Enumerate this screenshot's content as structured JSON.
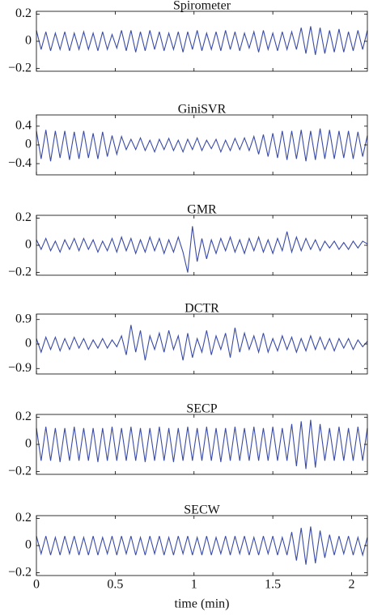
{
  "chart_data": [
    {
      "type": "line",
      "title": "Spirometer",
      "color": "#3a4ba6",
      "x": [
        0,
        0.03,
        0.06,
        0.09,
        0.12,
        0.15,
        0.18,
        0.21,
        0.24,
        0.27,
        0.3,
        0.33,
        0.36,
        0.39,
        0.42,
        0.45,
        0.48,
        0.51,
        0.54,
        0.57,
        0.6,
        0.63,
        0.66,
        0.69,
        0.72,
        0.75,
        0.78,
        0.81,
        0.84,
        0.87,
        0.9,
        0.93,
        0.96,
        0.99,
        1.02,
        1.05,
        1.08,
        1.11,
        1.14,
        1.17,
        1.2,
        1.23,
        1.26,
        1.29,
        1.32,
        1.35,
        1.38,
        1.41,
        1.44,
        1.47,
        1.5,
        1.53,
        1.56,
        1.59,
        1.62,
        1.65,
        1.68,
        1.71,
        1.74,
        1.77,
        1.8,
        1.83,
        1.86,
        1.89,
        1.92,
        1.95,
        1.98,
        2.01,
        2.04,
        2.07,
        2.1
      ],
      "values": [
        0.08,
        -0.06,
        0.07,
        -0.07,
        0.06,
        -0.06,
        0.07,
        -0.07,
        0.06,
        -0.06,
        0.07,
        -0.06,
        0.06,
        -0.07,
        0.07,
        -0.06,
        0.05,
        -0.05,
        0.08,
        -0.07,
        0.08,
        -0.08,
        0.07,
        -0.07,
        0.08,
        -0.06,
        0.07,
        -0.07,
        0.06,
        -0.06,
        0.07,
        -0.08,
        0.07,
        -0.06,
        0.08,
        -0.07,
        0.06,
        -0.06,
        0.07,
        -0.07,
        0.08,
        -0.06,
        0.07,
        -0.07,
        0.06,
        -0.05,
        0.07,
        -0.08,
        0.08,
        -0.06,
        0.06,
        -0.07,
        0.07,
        -0.06,
        0.07,
        -0.06,
        0.1,
        -0.09,
        0.11,
        -0.1,
        0.1,
        -0.09,
        0.08,
        -0.08,
        0.09,
        -0.08,
        0.07,
        -0.07,
        0.08,
        -0.06,
        0.08
      ],
      "xlim": [
        0,
        2.1
      ],
      "xticks": [
        0,
        0.5,
        1,
        1.5,
        2
      ],
      "ylim": [
        -0.22,
        0.22
      ],
      "yticks": [
        {
          "value": -0.2,
          "label": "−0.2"
        },
        0,
        0.2
      ]
    },
    {
      "type": "line",
      "title": "GiniSVR",
      "color": "#3a4ba6",
      "x": [
        0,
        0.03,
        0.06,
        0.09,
        0.12,
        0.15,
        0.18,
        0.21,
        0.24,
        0.27,
        0.3,
        0.33,
        0.36,
        0.39,
        0.42,
        0.45,
        0.48,
        0.51,
        0.54,
        0.57,
        0.6,
        0.63,
        0.66,
        0.69,
        0.72,
        0.75,
        0.78,
        0.81,
        0.84,
        0.87,
        0.9,
        0.93,
        0.96,
        0.99,
        1.02,
        1.05,
        1.08,
        1.11,
        1.14,
        1.17,
        1.2,
        1.23,
        1.26,
        1.29,
        1.32,
        1.35,
        1.38,
        1.41,
        1.44,
        1.47,
        1.5,
        1.53,
        1.56,
        1.59,
        1.62,
        1.65,
        1.68,
        1.71,
        1.74,
        1.77,
        1.8,
        1.83,
        1.86,
        1.89,
        1.92,
        1.95,
        1.98,
        2.01,
        2.04,
        2.07,
        2.1
      ],
      "values": [
        0.3,
        -0.3,
        0.32,
        -0.35,
        0.3,
        -0.28,
        0.3,
        -0.32,
        0.28,
        -0.3,
        0.3,
        -0.28,
        0.25,
        -0.3,
        0.28,
        -0.25,
        0.2,
        -0.2,
        0.18,
        -0.1,
        0.12,
        -0.1,
        0.15,
        -0.12,
        0.1,
        -0.15,
        0.12,
        -0.1,
        0.14,
        -0.12,
        0.1,
        -0.15,
        0.12,
        -0.1,
        0.15,
        -0.12,
        0.1,
        -0.08,
        0.12,
        -0.15,
        0.1,
        -0.12,
        0.14,
        -0.1,
        0.15,
        -0.12,
        0.18,
        -0.2,
        0.22,
        -0.25,
        0.25,
        -0.28,
        0.3,
        -0.32,
        0.3,
        -0.3,
        0.32,
        -0.35,
        0.3,
        -0.32,
        0.35,
        -0.3,
        0.32,
        -0.3,
        0.3,
        -0.28,
        0.3,
        -0.3,
        0.28,
        -0.25,
        0.2
      ],
      "xlim": [
        0,
        2.1
      ],
      "xticks": [
        0,
        0.5,
        1,
        1.5,
        2
      ],
      "ylim": [
        -0.64,
        0.64
      ],
      "yticks": [
        {
          "value": -0.4,
          "label": "−0.4"
        },
        0,
        0.4
      ]
    },
    {
      "type": "line",
      "title": "GMR",
      "color": "#3a4ba6",
      "x": [
        0,
        0.03,
        0.06,
        0.09,
        0.12,
        0.15,
        0.18,
        0.21,
        0.24,
        0.27,
        0.3,
        0.33,
        0.36,
        0.39,
        0.42,
        0.45,
        0.48,
        0.51,
        0.54,
        0.57,
        0.6,
        0.63,
        0.66,
        0.69,
        0.72,
        0.75,
        0.78,
        0.81,
        0.84,
        0.87,
        0.9,
        0.93,
        0.96,
        0.99,
        1.02,
        1.05,
        1.08,
        1.11,
        1.14,
        1.17,
        1.2,
        1.23,
        1.26,
        1.29,
        1.32,
        1.35,
        1.38,
        1.41,
        1.44,
        1.47,
        1.5,
        1.53,
        1.56,
        1.59,
        1.62,
        1.65,
        1.68,
        1.71,
        1.74,
        1.77,
        1.8,
        1.83,
        1.86,
        1.89,
        1.92,
        1.95,
        1.98,
        2.01,
        2.04,
        2.07,
        2.1
      ],
      "values": [
        0.04,
        -0.03,
        0.05,
        -0.04,
        0.03,
        -0.05,
        0.04,
        -0.03,
        0.05,
        -0.04,
        0.05,
        -0.03,
        0.04,
        -0.05,
        0.03,
        -0.04,
        0.05,
        -0.05,
        0.06,
        -0.04,
        0.05,
        -0.06,
        0.04,
        -0.05,
        0.06,
        -0.04,
        0.05,
        -0.06,
        0.04,
        -0.05,
        0.06,
        -0.05,
        -0.2,
        0.14,
        -0.12,
        0.05,
        -0.1,
        0.04,
        -0.06,
        0.05,
        -0.04,
        0.06,
        -0.05,
        0.04,
        -0.06,
        0.05,
        -0.04,
        0.06,
        -0.05,
        0.04,
        -0.06,
        0.05,
        -0.04,
        0.1,
        -0.05,
        0.06,
        -0.04,
        0.05,
        -0.03,
        0.04,
        -0.04,
        0.03,
        -0.02,
        0.03,
        -0.03,
        0.02,
        -0.03,
        0.03,
        -0.02,
        0.03,
        0.01
      ],
      "xlim": [
        0,
        2.1
      ],
      "xticks": [
        0,
        0.5,
        1,
        1.5,
        2
      ],
      "ylim": [
        -0.22,
        0.22
      ],
      "yticks": [
        {
          "value": -0.2,
          "label": "−0.2"
        },
        0,
        0.2
      ]
    },
    {
      "type": "line",
      "title": "DCTR",
      "color": "#3a4ba6",
      "x": [
        0,
        0.03,
        0.06,
        0.09,
        0.12,
        0.15,
        0.18,
        0.21,
        0.24,
        0.27,
        0.3,
        0.33,
        0.36,
        0.39,
        0.42,
        0.45,
        0.48,
        0.51,
        0.54,
        0.57,
        0.6,
        0.63,
        0.66,
        0.69,
        0.72,
        0.75,
        0.78,
        0.81,
        0.84,
        0.87,
        0.9,
        0.93,
        0.96,
        0.99,
        1.02,
        1.05,
        1.08,
        1.11,
        1.14,
        1.17,
        1.2,
        1.23,
        1.26,
        1.29,
        1.32,
        1.35,
        1.38,
        1.41,
        1.44,
        1.47,
        1.5,
        1.53,
        1.56,
        1.59,
        1.62,
        1.65,
        1.68,
        1.71,
        1.74,
        1.77,
        1.8,
        1.83,
        1.86,
        1.89,
        1.92,
        1.95,
        1.98,
        2.01,
        2.04,
        2.07,
        2.1
      ],
      "values": [
        0.2,
        -0.3,
        0.25,
        -0.2,
        0.25,
        -0.25,
        0.2,
        -0.2,
        0.25,
        -0.15,
        0.2,
        -0.2,
        0.15,
        -0.15,
        0.2,
        -0.15,
        0.15,
        -0.1,
        0.3,
        -0.4,
        0.7,
        -0.3,
        0.5,
        -0.6,
        0.3,
        -0.2,
        0.4,
        -0.3,
        0.5,
        -0.2,
        0.3,
        -0.6,
        0.4,
        -0.5,
        0.2,
        -0.3,
        0.5,
        -0.4,
        0.3,
        -0.2,
        0.4,
        -0.5,
        0.6,
        -0.3,
        0.4,
        -0.2,
        0.3,
        -0.3,
        0.4,
        -0.3,
        0.2,
        -0.25,
        0.3,
        -0.2,
        0.25,
        -0.3,
        0.2,
        -0.25,
        0.3,
        -0.2,
        0.25,
        -0.2,
        0.2,
        -0.25,
        0.2,
        -0.15,
        0.2,
        -0.2,
        0.15,
        -0.1,
        0.1
      ],
      "xlim": [
        0,
        2.1
      ],
      "xticks": [
        0,
        0.5,
        1,
        1.5,
        2
      ],
      "ylim": [
        -1.1,
        1.1
      ],
      "yticks": [
        {
          "value": -0.9,
          "label": "−0.9"
        },
        0,
        0.9
      ]
    },
    {
      "type": "line",
      "title": "SECP",
      "color": "#3a4ba6",
      "x": [
        0,
        0.03,
        0.06,
        0.09,
        0.12,
        0.15,
        0.18,
        0.21,
        0.24,
        0.27,
        0.3,
        0.33,
        0.36,
        0.39,
        0.42,
        0.45,
        0.48,
        0.51,
        0.54,
        0.57,
        0.6,
        0.63,
        0.66,
        0.69,
        0.72,
        0.75,
        0.78,
        0.81,
        0.84,
        0.87,
        0.9,
        0.93,
        0.96,
        0.99,
        1.02,
        1.05,
        1.08,
        1.11,
        1.14,
        1.17,
        1.2,
        1.23,
        1.26,
        1.29,
        1.32,
        1.35,
        1.38,
        1.41,
        1.44,
        1.47,
        1.5,
        1.53,
        1.56,
        1.59,
        1.62,
        1.65,
        1.68,
        1.71,
        1.74,
        1.77,
        1.8,
        1.83,
        1.86,
        1.89,
        1.92,
        1.95,
        1.98,
        2.01,
        2.04,
        2.07,
        2.1
      ],
      "values": [
        0.12,
        -0.12,
        0.13,
        -0.12,
        0.12,
        -0.13,
        0.12,
        -0.12,
        0.13,
        -0.12,
        0.12,
        -0.12,
        0.12,
        -0.13,
        0.12,
        -0.12,
        0.13,
        -0.12,
        0.12,
        -0.12,
        0.13,
        -0.12,
        0.12,
        -0.13,
        0.12,
        -0.12,
        0.13,
        -0.12,
        0.12,
        -0.13,
        0.12,
        -0.12,
        0.13,
        -0.12,
        0.12,
        -0.12,
        0.13,
        -0.12,
        0.12,
        -0.13,
        0.12,
        -0.12,
        0.13,
        -0.12,
        0.12,
        -0.12,
        0.13,
        -0.12,
        0.12,
        -0.12,
        0.13,
        -0.12,
        0.12,
        -0.12,
        0.15,
        -0.16,
        0.17,
        -0.18,
        0.18,
        -0.17,
        0.15,
        -0.12,
        0.12,
        -0.12,
        0.13,
        -0.12,
        0.12,
        -0.12,
        0.13,
        -0.12,
        0.12
      ],
      "xlim": [
        0,
        2.1
      ],
      "xticks": [
        0,
        0.5,
        1,
        1.5,
        2
      ],
      "ylim": [
        -0.22,
        0.22
      ],
      "yticks": [
        {
          "value": -0.2,
          "label": "−0.2"
        },
        0,
        0.2
      ]
    },
    {
      "type": "line",
      "title": "SECW",
      "color": "#3a4ba6",
      "xlabel": "time (min)",
      "x": [
        0,
        0.03,
        0.06,
        0.09,
        0.12,
        0.15,
        0.18,
        0.21,
        0.24,
        0.27,
        0.3,
        0.33,
        0.36,
        0.39,
        0.42,
        0.45,
        0.48,
        0.51,
        0.54,
        0.57,
        0.6,
        0.63,
        0.66,
        0.69,
        0.72,
        0.75,
        0.78,
        0.81,
        0.84,
        0.87,
        0.9,
        0.93,
        0.96,
        0.99,
        1.02,
        1.05,
        1.08,
        1.11,
        1.14,
        1.17,
        1.2,
        1.23,
        1.26,
        1.29,
        1.32,
        1.35,
        1.38,
        1.41,
        1.44,
        1.47,
        1.5,
        1.53,
        1.56,
        1.59,
        1.62,
        1.65,
        1.68,
        1.71,
        1.74,
        1.77,
        1.8,
        1.83,
        1.86,
        1.89,
        1.92,
        1.95,
        1.98,
        2.01,
        2.04,
        2.07,
        2.1
      ],
      "values": [
        0.07,
        -0.06,
        0.07,
        -0.07,
        0.06,
        -0.07,
        0.07,
        -0.06,
        0.07,
        -0.07,
        0.06,
        -0.07,
        0.07,
        -0.07,
        0.06,
        -0.06,
        0.07,
        -0.07,
        0.07,
        -0.06,
        0.07,
        -0.07,
        0.06,
        -0.07,
        0.07,
        -0.06,
        0.07,
        -0.07,
        0.06,
        -0.07,
        0.07,
        -0.06,
        0.07,
        -0.07,
        0.06,
        -0.07,
        0.07,
        -0.07,
        0.06,
        -0.06,
        0.07,
        -0.07,
        0.07,
        -0.06,
        0.07,
        -0.07,
        0.06,
        -0.07,
        0.07,
        -0.06,
        0.07,
        -0.07,
        0.06,
        -0.07,
        0.1,
        -0.11,
        0.13,
        -0.14,
        0.14,
        -0.13,
        0.11,
        -0.09,
        0.08,
        -0.07,
        0.07,
        -0.06,
        0.07,
        -0.07,
        0.06,
        -0.07,
        0.06
      ],
      "xlim": [
        0,
        2.1
      ],
      "xticks": [
        0,
        0.5,
        1,
        1.5,
        2
      ],
      "ylim": [
        -0.22,
        0.22
      ],
      "yticks": [
        {
          "value": -0.2,
          "label": "−0.2"
        },
        0,
        0.2
      ]
    }
  ]
}
